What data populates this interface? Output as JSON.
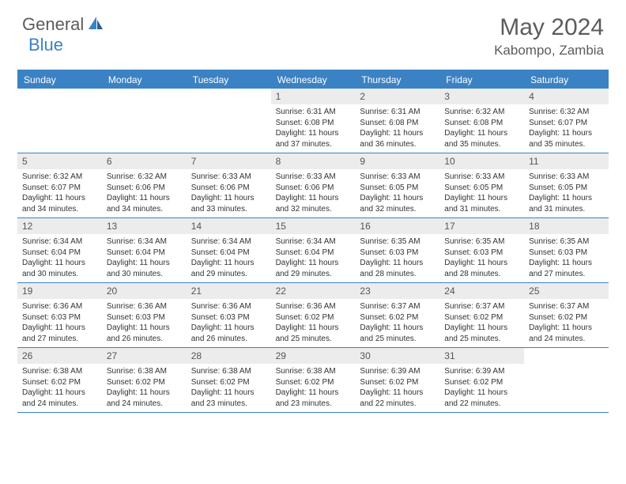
{
  "logo": {
    "part1": "General",
    "part2": "Blue"
  },
  "title": "May 2024",
  "location": "Kabompo, Zambia",
  "colors": {
    "header_bar": "#3b82c4",
    "day_num_bg": "#ececec",
    "text": "#5c5c5c",
    "body_text": "#333333"
  },
  "day_names": [
    "Sunday",
    "Monday",
    "Tuesday",
    "Wednesday",
    "Thursday",
    "Friday",
    "Saturday"
  ],
  "weeks": [
    [
      {
        "n": "",
        "sr": "",
        "ss": "",
        "dl": ""
      },
      {
        "n": "",
        "sr": "",
        "ss": "",
        "dl": ""
      },
      {
        "n": "",
        "sr": "",
        "ss": "",
        "dl": ""
      },
      {
        "n": "1",
        "sr": "Sunrise: 6:31 AM",
        "ss": "Sunset: 6:08 PM",
        "dl": "Daylight: 11 hours and 37 minutes."
      },
      {
        "n": "2",
        "sr": "Sunrise: 6:31 AM",
        "ss": "Sunset: 6:08 PM",
        "dl": "Daylight: 11 hours and 36 minutes."
      },
      {
        "n": "3",
        "sr": "Sunrise: 6:32 AM",
        "ss": "Sunset: 6:08 PM",
        "dl": "Daylight: 11 hours and 35 minutes."
      },
      {
        "n": "4",
        "sr": "Sunrise: 6:32 AM",
        "ss": "Sunset: 6:07 PM",
        "dl": "Daylight: 11 hours and 35 minutes."
      }
    ],
    [
      {
        "n": "5",
        "sr": "Sunrise: 6:32 AM",
        "ss": "Sunset: 6:07 PM",
        "dl": "Daylight: 11 hours and 34 minutes."
      },
      {
        "n": "6",
        "sr": "Sunrise: 6:32 AM",
        "ss": "Sunset: 6:06 PM",
        "dl": "Daylight: 11 hours and 34 minutes."
      },
      {
        "n": "7",
        "sr": "Sunrise: 6:33 AM",
        "ss": "Sunset: 6:06 PM",
        "dl": "Daylight: 11 hours and 33 minutes."
      },
      {
        "n": "8",
        "sr": "Sunrise: 6:33 AM",
        "ss": "Sunset: 6:06 PM",
        "dl": "Daylight: 11 hours and 32 minutes."
      },
      {
        "n": "9",
        "sr": "Sunrise: 6:33 AM",
        "ss": "Sunset: 6:05 PM",
        "dl": "Daylight: 11 hours and 32 minutes."
      },
      {
        "n": "10",
        "sr": "Sunrise: 6:33 AM",
        "ss": "Sunset: 6:05 PM",
        "dl": "Daylight: 11 hours and 31 minutes."
      },
      {
        "n": "11",
        "sr": "Sunrise: 6:33 AM",
        "ss": "Sunset: 6:05 PM",
        "dl": "Daylight: 11 hours and 31 minutes."
      }
    ],
    [
      {
        "n": "12",
        "sr": "Sunrise: 6:34 AM",
        "ss": "Sunset: 6:04 PM",
        "dl": "Daylight: 11 hours and 30 minutes."
      },
      {
        "n": "13",
        "sr": "Sunrise: 6:34 AM",
        "ss": "Sunset: 6:04 PM",
        "dl": "Daylight: 11 hours and 30 minutes."
      },
      {
        "n": "14",
        "sr": "Sunrise: 6:34 AM",
        "ss": "Sunset: 6:04 PM",
        "dl": "Daylight: 11 hours and 29 minutes."
      },
      {
        "n": "15",
        "sr": "Sunrise: 6:34 AM",
        "ss": "Sunset: 6:04 PM",
        "dl": "Daylight: 11 hours and 29 minutes."
      },
      {
        "n": "16",
        "sr": "Sunrise: 6:35 AM",
        "ss": "Sunset: 6:03 PM",
        "dl": "Daylight: 11 hours and 28 minutes."
      },
      {
        "n": "17",
        "sr": "Sunrise: 6:35 AM",
        "ss": "Sunset: 6:03 PM",
        "dl": "Daylight: 11 hours and 28 minutes."
      },
      {
        "n": "18",
        "sr": "Sunrise: 6:35 AM",
        "ss": "Sunset: 6:03 PM",
        "dl": "Daylight: 11 hours and 27 minutes."
      }
    ],
    [
      {
        "n": "19",
        "sr": "Sunrise: 6:36 AM",
        "ss": "Sunset: 6:03 PM",
        "dl": "Daylight: 11 hours and 27 minutes."
      },
      {
        "n": "20",
        "sr": "Sunrise: 6:36 AM",
        "ss": "Sunset: 6:03 PM",
        "dl": "Daylight: 11 hours and 26 minutes."
      },
      {
        "n": "21",
        "sr": "Sunrise: 6:36 AM",
        "ss": "Sunset: 6:03 PM",
        "dl": "Daylight: 11 hours and 26 minutes."
      },
      {
        "n": "22",
        "sr": "Sunrise: 6:36 AM",
        "ss": "Sunset: 6:02 PM",
        "dl": "Daylight: 11 hours and 25 minutes."
      },
      {
        "n": "23",
        "sr": "Sunrise: 6:37 AM",
        "ss": "Sunset: 6:02 PM",
        "dl": "Daylight: 11 hours and 25 minutes."
      },
      {
        "n": "24",
        "sr": "Sunrise: 6:37 AM",
        "ss": "Sunset: 6:02 PM",
        "dl": "Daylight: 11 hours and 25 minutes."
      },
      {
        "n": "25",
        "sr": "Sunrise: 6:37 AM",
        "ss": "Sunset: 6:02 PM",
        "dl": "Daylight: 11 hours and 24 minutes."
      }
    ],
    [
      {
        "n": "26",
        "sr": "Sunrise: 6:38 AM",
        "ss": "Sunset: 6:02 PM",
        "dl": "Daylight: 11 hours and 24 minutes."
      },
      {
        "n": "27",
        "sr": "Sunrise: 6:38 AM",
        "ss": "Sunset: 6:02 PM",
        "dl": "Daylight: 11 hours and 24 minutes."
      },
      {
        "n": "28",
        "sr": "Sunrise: 6:38 AM",
        "ss": "Sunset: 6:02 PM",
        "dl": "Daylight: 11 hours and 23 minutes."
      },
      {
        "n": "29",
        "sr": "Sunrise: 6:38 AM",
        "ss": "Sunset: 6:02 PM",
        "dl": "Daylight: 11 hours and 23 minutes."
      },
      {
        "n": "30",
        "sr": "Sunrise: 6:39 AM",
        "ss": "Sunset: 6:02 PM",
        "dl": "Daylight: 11 hours and 22 minutes."
      },
      {
        "n": "31",
        "sr": "Sunrise: 6:39 AM",
        "ss": "Sunset: 6:02 PM",
        "dl": "Daylight: 11 hours and 22 minutes."
      },
      {
        "n": "",
        "sr": "",
        "ss": "",
        "dl": ""
      }
    ]
  ]
}
